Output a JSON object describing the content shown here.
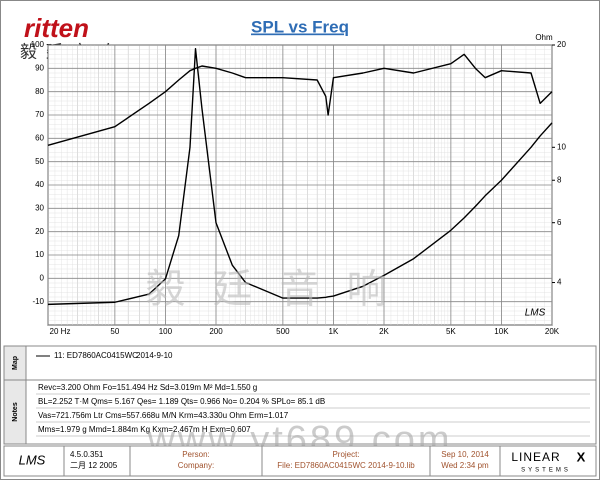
{
  "brand": {
    "logo": "ritten",
    "chinese": "毅 廷 音 响",
    "watermark_chinese": "毅 廷 音 响",
    "watermark_url": "www.yt689.com"
  },
  "chart_data": {
    "type": "line",
    "title": "SPL vs Freq",
    "y2_label": "Ohm",
    "plot_logo": "LMS",
    "x": [
      20,
      50,
      80,
      100,
      120,
      140,
      151,
      165,
      200,
      250,
      300,
      500,
      800,
      900,
      930,
      1000,
      1500,
      2000,
      3000,
      5000,
      6000,
      7000,
      8000,
      10000,
      15000,
      17000,
      20000
    ],
    "series": [
      {
        "color": "#000000",
        "values": [
          57,
          65,
          75,
          80,
          85,
          89,
          90,
          91,
          90,
          88,
          86,
          86,
          85,
          78,
          70,
          86,
          88,
          90,
          88,
          92,
          96,
          90,
          86,
          89,
          88,
          75,
          80
        ]
      },
      {
        "color": "#000000",
        "axis": "y2",
        "values": [
          3.45,
          3.5,
          3.7,
          4.1,
          5.5,
          10,
          19.5,
          13,
          6,
          4.5,
          4.0,
          3.6,
          3.6,
          3.62,
          3.63,
          3.65,
          3.9,
          4.2,
          4.7,
          5.7,
          6.2,
          6.7,
          7.2,
          8,
          10,
          10.8,
          11.8
        ]
      }
    ],
    "xscale": "log",
    "xlim": [
      20,
      20000
    ],
    "xticks": [
      {
        "value": 20,
        "label": "20 Hz"
      },
      50,
      100,
      200,
      500,
      {
        "value": 1000,
        "label": "1K"
      },
      {
        "value": 2000,
        "label": "2K"
      },
      {
        "value": 5000,
        "label": "5K"
      },
      {
        "value": 10000,
        "label": "10K"
      },
      {
        "value": 20000,
        "label": "20K"
      }
    ],
    "ylim": [
      -20,
      100
    ],
    "yticks": [
      -10,
      0,
      10,
      20,
      30,
      40,
      50,
      60,
      70,
      80,
      90,
      100
    ],
    "y2scale": "log",
    "y2lim": [
      3,
      20
    ],
    "y2ticks": [
      4,
      6,
      8,
      10,
      20
    ],
    "grid": true
  },
  "map": {
    "label": "Map",
    "entry": "11: ED7860AC0415WC",
    "entry_date": "2014-9-10"
  },
  "notes": {
    "label": "Notes",
    "lines": [
      "Revc=3.200 Ohm  Fo=151.494 Hz  Sd=3.019m M²  Md=1.550 g",
      "BL=2.252 T·M  Qms= 5.167  Qes= 1.189  Qts= 0.966  No= 0.204 %  SPLo= 85.1 dB",
      "Vas=721.756m Ltr  Cms=557.668u M/N  Krm=43.330u Ohm  Erm=1.017",
      "Mms=1.979 g  Mmd=1.884m Kg  Kxm=2.467m H  Exm=0.607"
    ]
  },
  "footer": {
    "logo": "LMS",
    "version": "4.5.0.351",
    "build": "二月 12 2005",
    "person": "Person:",
    "company": "Company:",
    "project": "Project:",
    "file": "File: ED7860AC0415WC   2014-9-10.lib",
    "date": "Sep 10, 2014",
    "time": "Wed  2:34 pm",
    "brand": "LINEAR",
    "brand_x": "X",
    "brand_sub": "SYSTEMS"
  }
}
